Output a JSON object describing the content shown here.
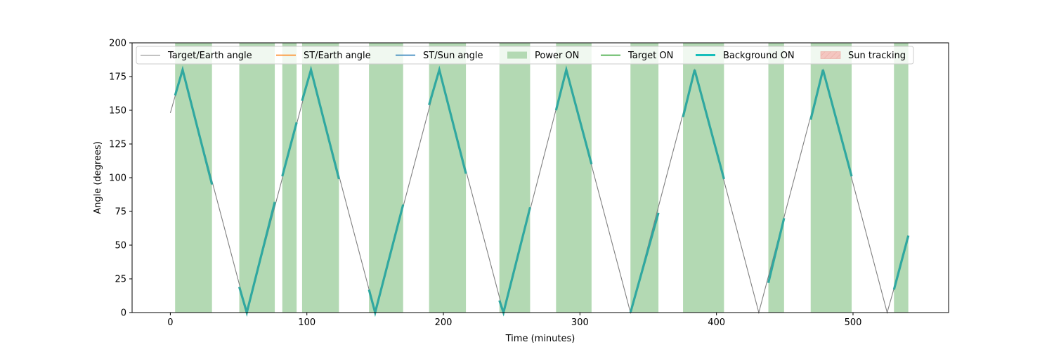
{
  "chart_data": {
    "type": "line",
    "xlabel": "Time (minutes)",
    "ylabel": "Angle (degrees)",
    "xlim": [
      -28,
      570
    ],
    "ylim": [
      0,
      200
    ],
    "xticks": [
      0,
      100,
      200,
      300,
      400,
      500
    ],
    "yticks": [
      0,
      25,
      50,
      75,
      100,
      125,
      150,
      175,
      200
    ],
    "xtick_labels": [
      "0",
      "100",
      "200",
      "300",
      "400",
      "500"
    ],
    "ytick_labels": [
      "0",
      "25",
      "50",
      "75",
      "100",
      "125",
      "150",
      "175",
      "200"
    ],
    "grid": false,
    "legend_position": "top",
    "colors": {
      "target_earth": "#808080",
      "st_earth": "#ff7f0e",
      "st_sun": "#1f77b4",
      "power_on": "#b3d9b3",
      "target_on": "#2ca02c",
      "background_on": "#17bebb",
      "background_line": "#30a8a0",
      "sun_tracking": "#f4c6c0"
    },
    "legend": [
      {
        "label": "Target/Earth angle",
        "kind": "line",
        "color": "#808080",
        "width": 1
      },
      {
        "label": "ST/Earth angle",
        "kind": "line",
        "color": "#ff7f0e",
        "width": 1.5
      },
      {
        "label": "ST/Sun angle",
        "kind": "line",
        "color": "#1f77b4",
        "width": 1.5
      },
      {
        "label": "Power ON",
        "kind": "patch",
        "color": "#b3d9b3"
      },
      {
        "label": "Target ON",
        "kind": "line",
        "color": "#2ca02c",
        "width": 1.5
      },
      {
        "label": "Background ON",
        "kind": "line",
        "color": "#17bebb",
        "width": 3
      },
      {
        "label": "Sun tracking",
        "kind": "hatch",
        "color": "#f4c6c0"
      }
    ],
    "series": [
      {
        "name": "Target/Earth angle",
        "x": [
          0,
          9,
          56,
          103,
          150,
          197,
          244,
          290,
          337,
          384,
          431,
          478,
          525,
          541
        ],
        "y": [
          148,
          180,
          0,
          180,
          0,
          180,
          0,
          180,
          0,
          180,
          0,
          180,
          0,
          57
        ]
      }
    ],
    "power_on_intervals": [
      [
        3.5,
        30.5
      ],
      [
        50.5,
        76.5
      ],
      [
        82,
        92.5
      ],
      [
        96.5,
        123.5
      ],
      [
        145.5,
        170.5
      ],
      [
        189.5,
        216.5
      ],
      [
        241,
        263.5
      ],
      [
        282.5,
        308.5
      ],
      [
        337,
        357.5
      ],
      [
        375.5,
        405.5
      ],
      [
        438,
        449.5
      ],
      [
        469,
        499
      ],
      [
        530,
        540.5
      ]
    ],
    "background_on_segments": [
      {
        "x": [
          3.5,
          9,
          30.5
        ],
        "y": [
          161,
          180,
          95
        ]
      },
      {
        "x": [
          50.5,
          56,
          76.5
        ],
        "y": [
          19,
          0,
          82
        ]
      },
      {
        "x": [
          82,
          92.5
        ],
        "y": [
          101,
          141
        ]
      },
      {
        "x": [
          96.5,
          103,
          123.5
        ],
        "y": [
          157,
          180,
          99
        ]
      },
      {
        "x": [
          145.5,
          150,
          170.5
        ],
        "y": [
          17,
          0,
          80
        ]
      },
      {
        "x": [
          189.5,
          197,
          216.5
        ],
        "y": [
          154,
          180,
          103
        ]
      },
      {
        "x": [
          241,
          244,
          263.5
        ],
        "y": [
          9,
          0,
          78
        ]
      },
      {
        "x": [
          282.5,
          290,
          308.5
        ],
        "y": [
          150,
          180,
          110
        ]
      },
      {
        "x": [
          337,
          357.5
        ],
        "y": [
          0,
          74
        ]
      },
      {
        "x": [
          375.5,
          384,
          405.5
        ],
        "y": [
          145,
          180,
          99
        ]
      },
      {
        "x": [
          438,
          449.5
        ],
        "y": [
          22,
          70
        ]
      },
      {
        "x": [
          469,
          478,
          499
        ],
        "y": [
          143,
          180,
          101
        ]
      },
      {
        "x": [
          530,
          540.5
        ],
        "y": [
          17,
          57
        ]
      }
    ]
  }
}
